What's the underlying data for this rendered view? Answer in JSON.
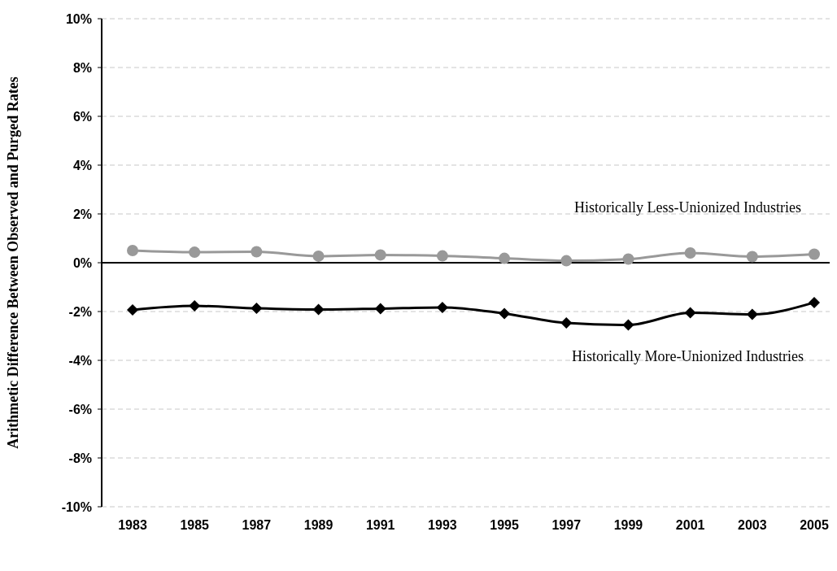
{
  "chart_data": {
    "type": "line",
    "ylabel": "Arithmetic Difference Between Observed and Purged Rates",
    "categories": [
      "1983",
      "1985",
      "1987",
      "1989",
      "1991",
      "1993",
      "1995",
      "1997",
      "1999",
      "2001",
      "2003",
      "2005"
    ],
    "series": [
      {
        "name": "Historically Less-Unionized Industries",
        "color": "#999999",
        "marker": "circle",
        "values": [
          0.5,
          0.43,
          0.45,
          0.27,
          0.32,
          0.28,
          0.18,
          0.08,
          0.15,
          0.4,
          0.25,
          0.35
        ]
      },
      {
        "name": "Historically More-Unionized Industries",
        "color": "#000000",
        "marker": "diamond",
        "values": [
          -1.93,
          -1.77,
          -1.87,
          -1.92,
          -1.88,
          -1.83,
          -2.08,
          -2.47,
          -2.55,
          -2.05,
          -2.12,
          -1.63
        ]
      }
    ],
    "ylim": [
      -10,
      10
    ],
    "yticks": [
      {
        "value": -10,
        "label": "-10%"
      },
      {
        "value": -8,
        "label": "-8%"
      },
      {
        "value": -6,
        "label": "-6%"
      },
      {
        "value": -4,
        "label": "-4%"
      },
      {
        "value": -2,
        "label": "-2%"
      },
      {
        "value": 0,
        "label": "0%"
      },
      {
        "value": 2,
        "label": "2%"
      },
      {
        "value": 4,
        "label": "4%"
      },
      {
        "value": 6,
        "label": "6%"
      },
      {
        "value": 8,
        "label": "8%"
      },
      {
        "value": 10,
        "label": "10%"
      }
    ],
    "grid": "y"
  }
}
